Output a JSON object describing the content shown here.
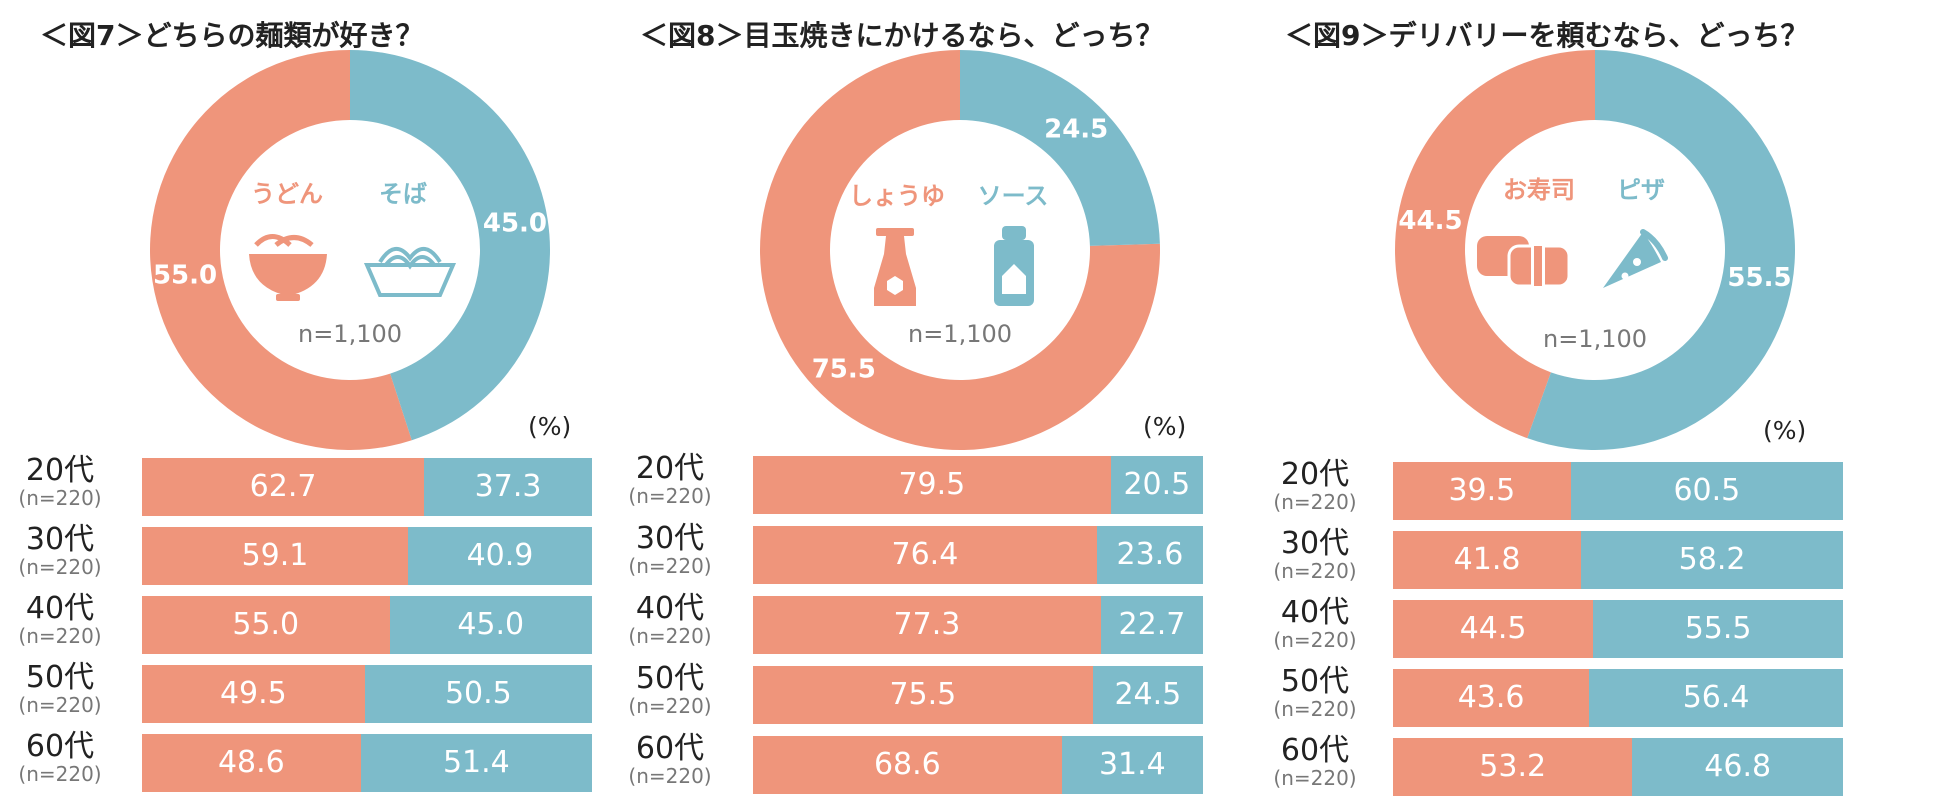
{
  "colors": {
    "option1": "#ef957b",
    "option2": "#7dbbca",
    "white": "#ffffff",
    "text": "#222222",
    "muted": "#777777"
  },
  "unit_label": "(%)",
  "chart_data": [
    {
      "type": "donut+stacked-bar",
      "title": "＜図7＞どちらの麺類が好き？",
      "options": [
        "うどん",
        "そば"
      ],
      "icons": [
        "udon-bowl-icon",
        "soba-tray-icon"
      ],
      "n_label": "n=1,100",
      "overall": [
        55.0,
        45.0
      ],
      "overall_labels": [
        "55.0",
        "45.0"
      ],
      "categories": [
        "20代",
        "30代",
        "40代",
        "50代",
        "60代"
      ],
      "sample_labels": [
        "(n=220)",
        "(n=220)",
        "(n=220)",
        "(n=220)",
        "(n=220)"
      ],
      "series": [
        {
          "name": "うどん",
          "values": [
            62.7,
            59.1,
            55.0,
            49.5,
            48.6
          ],
          "labels": [
            "62.7",
            "59.1",
            "55.0",
            "49.5",
            "48.6"
          ]
        },
        {
          "name": "そば",
          "values": [
            37.3,
            40.9,
            45.0,
            50.5,
            51.4
          ],
          "labels": [
            "37.3",
            "40.9",
            "45.0",
            "50.5",
            "51.4"
          ]
        }
      ]
    },
    {
      "type": "donut+stacked-bar",
      "title": "＜図8＞目玉焼きにかけるなら、どっち？",
      "options": [
        "しょうゆ",
        "ソース"
      ],
      "icons": [
        "soy-sauce-bottle-icon",
        "sauce-bottle-icon"
      ],
      "n_label": "n=1,100",
      "overall": [
        75.5,
        24.5
      ],
      "overall_labels": [
        "75.5",
        "24.5"
      ],
      "categories": [
        "20代",
        "30代",
        "40代",
        "50代",
        "60代"
      ],
      "sample_labels": [
        "(n=220)",
        "(n=220)",
        "(n=220)",
        "(n=220)",
        "(n=220)"
      ],
      "series": [
        {
          "name": "しょうゆ",
          "values": [
            79.5,
            76.4,
            77.3,
            75.5,
            68.6
          ],
          "labels": [
            "79.5",
            "76.4",
            "77.3",
            "75.5",
            "68.6"
          ]
        },
        {
          "name": "ソース",
          "values": [
            20.5,
            23.6,
            22.7,
            24.5,
            31.4
          ],
          "labels": [
            "20.5",
            "23.6",
            "22.7",
            "24.5",
            "31.4"
          ]
        }
      ]
    },
    {
      "type": "donut+stacked-bar",
      "title": "＜図9＞デリバリーを頼むなら、どっち？",
      "options": [
        "お寿司",
        "ピザ"
      ],
      "icons": [
        "sushi-icon",
        "pizza-slice-icon"
      ],
      "n_label": "n=1,100",
      "overall": [
        44.5,
        55.5
      ],
      "overall_labels": [
        "44.5",
        "55.5"
      ],
      "categories": [
        "20代",
        "30代",
        "40代",
        "50代",
        "60代"
      ],
      "sample_labels": [
        "(n=220)",
        "(n=220)",
        "(n=220)",
        "(n=220)",
        "(n=220)"
      ],
      "series": [
        {
          "name": "お寿司",
          "values": [
            39.5,
            41.8,
            44.5,
            43.6,
            53.2
          ],
          "labels": [
            "39.5",
            "41.8",
            "44.5",
            "43.6",
            "53.2"
          ]
        },
        {
          "name": "ピザ",
          "values": [
            60.5,
            58.2,
            55.5,
            56.4,
            46.8
          ],
          "labels": [
            "60.5",
            "58.2",
            "55.5",
            "56.4",
            "46.8"
          ]
        }
      ]
    }
  ]
}
